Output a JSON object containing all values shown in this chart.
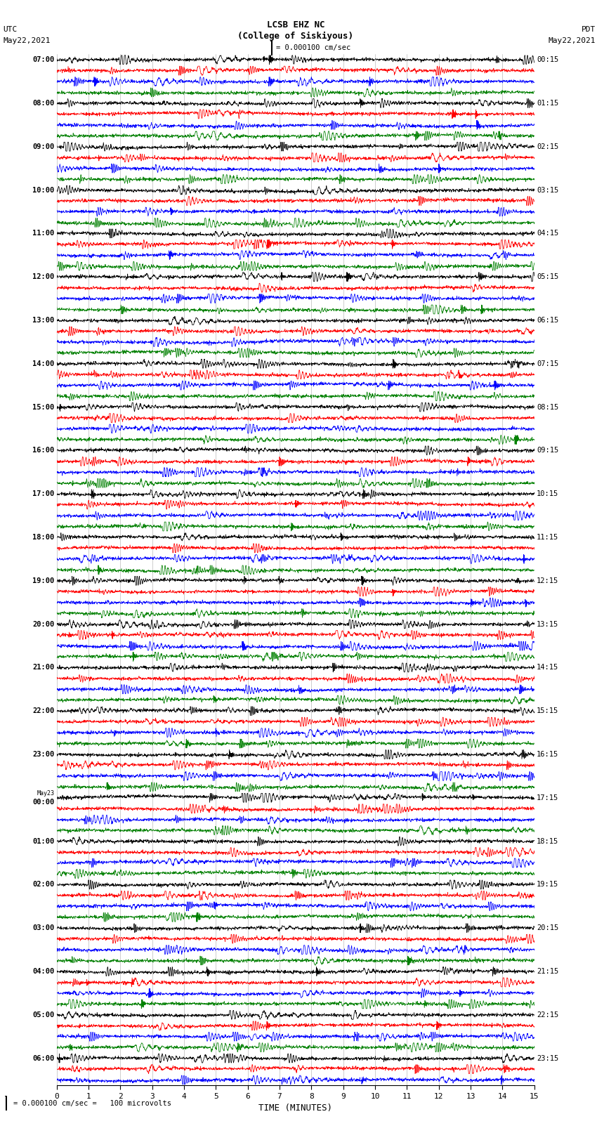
{
  "title_line1": "LCSB EHZ NC",
  "title_line2": "(College of Siskiyous)",
  "scale_label": "= 0.000100 cm/sec",
  "utc_label": "UTC",
  "utc_date": "May22,2021",
  "pdt_label": "PDT",
  "pdt_date": "May22,2021",
  "bottom_note": "= 0.000100 cm/sec =   100 microvolts",
  "xlabel": "TIME (MINUTES)",
  "colors": [
    "black",
    "red",
    "blue",
    "green"
  ],
  "bg_color": "#ffffff",
  "left_times": [
    "07:00",
    "",
    "",
    "",
    "08:00",
    "",
    "",
    "",
    "09:00",
    "",
    "",
    "",
    "10:00",
    "",
    "",
    "",
    "11:00",
    "",
    "",
    "",
    "12:00",
    "",
    "",
    "",
    "13:00",
    "",
    "",
    "",
    "14:00",
    "",
    "",
    "",
    "15:00",
    "",
    "",
    "",
    "16:00",
    "",
    "",
    "",
    "17:00",
    "",
    "",
    "",
    "18:00",
    "",
    "",
    "",
    "19:00",
    "",
    "",
    "",
    "20:00",
    "",
    "",
    "",
    "21:00",
    "",
    "",
    "",
    "22:00",
    "",
    "",
    "",
    "23:00",
    "",
    "",
    "",
    "May23\n00:00",
    "",
    "",
    "",
    "01:00",
    "",
    "",
    "",
    "02:00",
    "",
    "",
    "",
    "03:00",
    "",
    "",
    "",
    "04:00",
    "",
    "",
    "",
    "05:00",
    "",
    "",
    "",
    "06:00",
    "",
    ""
  ],
  "right_times": [
    "00:15",
    "",
    "",
    "",
    "01:15",
    "",
    "",
    "",
    "02:15",
    "",
    "",
    "",
    "03:15",
    "",
    "",
    "",
    "04:15",
    "",
    "",
    "",
    "05:15",
    "",
    "",
    "",
    "06:15",
    "",
    "",
    "",
    "07:15",
    "",
    "",
    "",
    "08:15",
    "",
    "",
    "",
    "09:15",
    "",
    "",
    "",
    "10:15",
    "",
    "",
    "",
    "11:15",
    "",
    "",
    "",
    "12:15",
    "",
    "",
    "",
    "13:15",
    "",
    "",
    "",
    "14:15",
    "",
    "",
    "",
    "15:15",
    "",
    "",
    "",
    "16:15",
    "",
    "",
    "",
    "17:15",
    "",
    "",
    "",
    "18:15",
    "",
    "",
    "",
    "19:15",
    "",
    "",
    "",
    "20:15",
    "",
    "",
    "",
    "21:15",
    "",
    "",
    "",
    "22:15",
    "",
    "",
    "",
    "23:15",
    "",
    ""
  ],
  "n_rows": 95,
  "n_cols": 1800,
  "time_min": 0,
  "time_max": 15,
  "xticks": [
    0,
    1,
    2,
    3,
    4,
    5,
    6,
    7,
    8,
    9,
    10,
    11,
    12,
    13,
    14,
    15
  ],
  "fig_width": 8.5,
  "fig_height": 16.13,
  "dpi": 100,
  "row_amplitude": 0.42,
  "base_noise": 0.08,
  "spike_prob": 0.003,
  "spike_amp_min": 0.3,
  "spike_amp_max": 1.2
}
